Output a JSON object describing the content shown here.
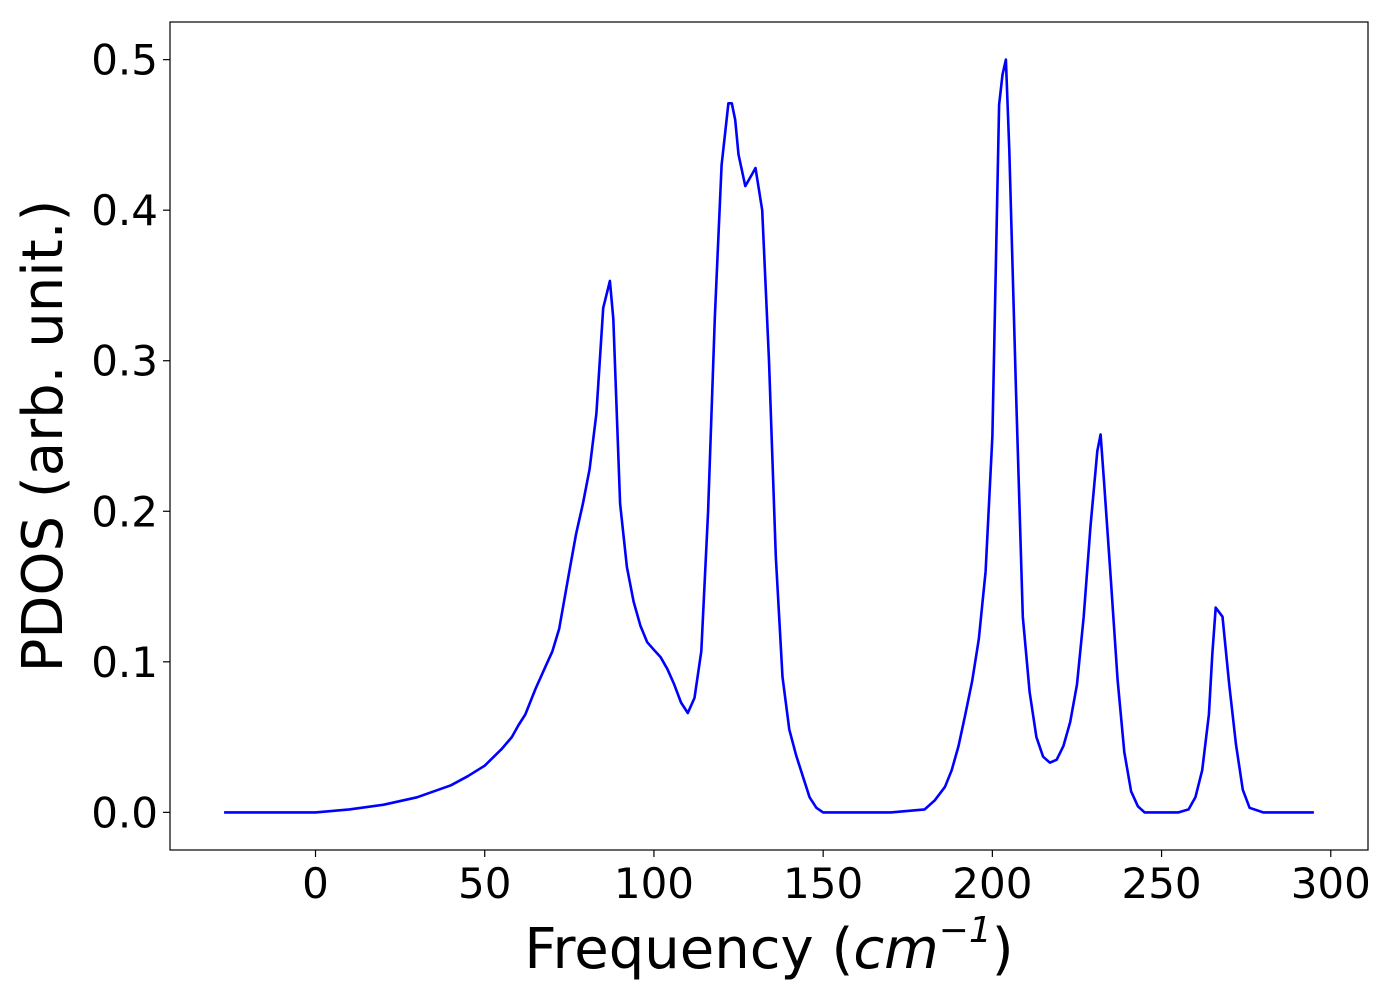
{
  "chart_data": {
    "type": "line",
    "title": "",
    "xlabel_text": "Frequency (",
    "xlabel_math": "cm",
    "xlabel_sup": "−1",
    "xlabel_close": ")",
    "ylabel": "PDOS (arb. unit.)",
    "xlim": [
      -43,
      311
    ],
    "ylim": [
      -0.025,
      0.525
    ],
    "xticks": [
      0,
      50,
      100,
      150,
      200,
      250,
      300
    ],
    "xtick_labels": [
      "0",
      "50",
      "100",
      "150",
      "200",
      "250",
      "300"
    ],
    "yticks": [
      0.0,
      0.1,
      0.2,
      0.3,
      0.4,
      0.5
    ],
    "ytick_labels": [
      "0.0",
      "0.1",
      "0.2",
      "0.3",
      "0.4",
      "0.5"
    ],
    "grid": false,
    "legend": "none",
    "series": [
      {
        "color": "#0000ff",
        "x": [
          -27,
          -10,
          0,
          10,
          20,
          30,
          40,
          45,
          50,
          55,
          58,
          60,
          62,
          65,
          68,
          70,
          72,
          75,
          77,
          79,
          81,
          83,
          85,
          87,
          88,
          90,
          92,
          94,
          96,
          98,
          100,
          102,
          104,
          106,
          108,
          110,
          112,
          114,
          116,
          118,
          120,
          122,
          123,
          124,
          125,
          127,
          129,
          130,
          132,
          134,
          136,
          138,
          140,
          142,
          144,
          146,
          148,
          150,
          155,
          170,
          180,
          183,
          186,
          188,
          190,
          192,
          194,
          196,
          198,
          200,
          202,
          203,
          204,
          205,
          207,
          209,
          211,
          213,
          215,
          217,
          219,
          221,
          223,
          225,
          227,
          229,
          231,
          232,
          233,
          235,
          237,
          239,
          241,
          243,
          245,
          250,
          255,
          258,
          260,
          262,
          264,
          265,
          266,
          268,
          270,
          272,
          274,
          276,
          280,
          295
        ],
        "y": [
          0.0,
          0.0,
          0.0,
          0.002,
          0.005,
          0.01,
          0.018,
          0.024,
          0.031,
          0.042,
          0.05,
          0.058,
          0.065,
          0.082,
          0.097,
          0.107,
          0.122,
          0.16,
          0.185,
          0.205,
          0.228,
          0.265,
          0.335,
          0.353,
          0.328,
          0.205,
          0.163,
          0.14,
          0.124,
          0.113,
          0.108,
          0.103,
          0.095,
          0.085,
          0.073,
          0.066,
          0.076,
          0.107,
          0.2,
          0.33,
          0.43,
          0.471,
          0.471,
          0.46,
          0.437,
          0.416,
          0.424,
          0.428,
          0.4,
          0.3,
          0.17,
          0.09,
          0.055,
          0.038,
          0.024,
          0.01,
          0.003,
          0.0,
          0.0,
          0.0,
          0.002,
          0.008,
          0.017,
          0.028,
          0.044,
          0.065,
          0.087,
          0.115,
          0.16,
          0.25,
          0.47,
          0.49,
          0.5,
          0.44,
          0.28,
          0.13,
          0.08,
          0.05,
          0.037,
          0.033,
          0.035,
          0.044,
          0.06,
          0.085,
          0.13,
          0.19,
          0.24,
          0.251,
          0.22,
          0.155,
          0.088,
          0.04,
          0.014,
          0.004,
          0.0,
          0.0,
          0.0,
          0.002,
          0.01,
          0.028,
          0.065,
          0.105,
          0.136,
          0.13,
          0.085,
          0.045,
          0.015,
          0.003,
          0.0,
          0.0
        ]
      }
    ]
  }
}
